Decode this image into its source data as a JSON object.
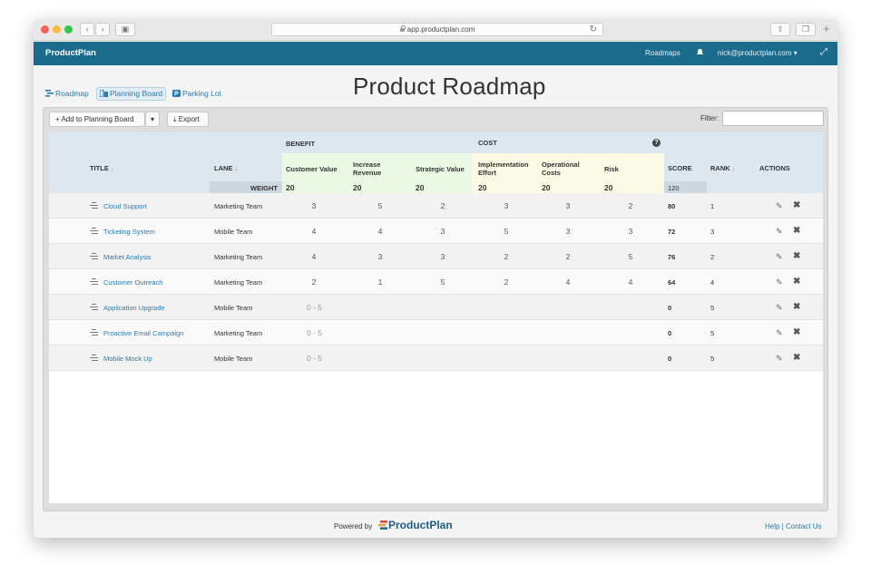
{
  "browser": {
    "url": "app.productplan.com"
  },
  "app": {
    "brand": "ProductPlan",
    "nav_roadmaps": "Roadmaps",
    "user_email": "nick@productplan.com ▾"
  },
  "views": {
    "roadmap": "Roadmap",
    "planning_board": "Planning Board",
    "parking_lot": "Parking Lot"
  },
  "page_title": "Product Roadmap",
  "toolbar": {
    "add_label": "+ Add to Planning Board",
    "export_label": "Export",
    "filter_label": "Filter:",
    "filter_value": ""
  },
  "table": {
    "group_benefit": "BENEFIT",
    "group_cost": "COST",
    "col_title": "TITLE",
    "col_lane": "LANE",
    "col_score": "SCORE",
    "col_rank": "RANK",
    "col_actions": "ACTIONS",
    "criteria": [
      {
        "name": "Customer Value",
        "weight": "20"
      },
      {
        "name": "Increase Revenue",
        "weight": "20"
      },
      {
        "name": "Strategic Value",
        "weight": "20"
      },
      {
        "name": "Implementation Effort",
        "weight": "20"
      },
      {
        "name": "Operational Costs",
        "weight": "20"
      },
      {
        "name": "Risk",
        "weight": "20"
      }
    ],
    "weight_label": "WEIGHT",
    "score_weight": "120",
    "rows": [
      {
        "title": "Cloud Support",
        "lane": "Marketing Team",
        "v": [
          "3",
          "5",
          "2",
          "3",
          "3",
          "2"
        ],
        "score": "80",
        "rank": "1"
      },
      {
        "title": "Ticketing System",
        "lane": "Mobile Team",
        "v": [
          "4",
          "4",
          "3",
          "5",
          "3",
          "3"
        ],
        "score": "72",
        "rank": "3"
      },
      {
        "title": "Market Analysis",
        "lane": "Marketing Team",
        "v": [
          "4",
          "3",
          "3",
          "2",
          "2",
          "5"
        ],
        "score": "76",
        "rank": "2"
      },
      {
        "title": "Customer Outreach",
        "lane": "Marketing Team",
        "v": [
          "2",
          "1",
          "5",
          "2",
          "4",
          "4"
        ],
        "score": "64",
        "rank": "4"
      },
      {
        "title": "Application Upgrade",
        "lane": "Mobile Team",
        "range": "0 - 5",
        "score": "0",
        "rank": "5"
      },
      {
        "title": "Proactive Email Campaign",
        "lane": "Marketing Team",
        "range": "0 - 5",
        "score": "0",
        "rank": "5"
      },
      {
        "title": "Mobile Mock Up",
        "lane": "Mobile Team",
        "range": "0 - 5",
        "score": "0",
        "rank": "5"
      }
    ]
  },
  "footer": {
    "powered_by": "Powered by",
    "logo_text": "ProductPlan",
    "help": "Help",
    "contact": "Contact Us"
  },
  "colors": {
    "header_bg": "#1b6b8d",
    "link": "#2a7ab0",
    "benefit_bg": "#eaf9e4",
    "cost_bg": "#fbfbe5"
  }
}
